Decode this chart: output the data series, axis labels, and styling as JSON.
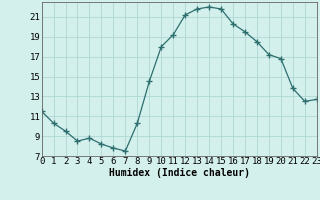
{
  "x": [
    0,
    1,
    2,
    3,
    4,
    5,
    6,
    7,
    8,
    9,
    10,
    11,
    12,
    13,
    14,
    15,
    16,
    17,
    18,
    19,
    20,
    21,
    22,
    23
  ],
  "y": [
    11.5,
    10.3,
    9.5,
    8.5,
    8.8,
    8.2,
    7.8,
    7.5,
    10.3,
    14.5,
    18.0,
    19.2,
    21.2,
    21.8,
    22.0,
    21.8,
    20.3,
    19.5,
    18.5,
    17.2,
    16.8,
    13.8,
    12.5,
    12.7
  ],
  "xlabel": "Humidex (Indice chaleur)",
  "line_color": "#2d6e6e",
  "marker": "+",
  "marker_size": 4,
  "background_color": "#d4f0ec",
  "grid_color": "#aed8d4",
  "ylim": [
    7,
    22.5
  ],
  "xlim": [
    0,
    23
  ],
  "yticks": [
    7,
    9,
    11,
    13,
    15,
    17,
    19,
    21
  ],
  "xtick_labels": [
    "0",
    "1",
    "2",
    "3",
    "4",
    "5",
    "6",
    "7",
    "8",
    "9",
    "10",
    "11",
    "12",
    "13",
    "14",
    "15",
    "16",
    "17",
    "18",
    "19",
    "20",
    "21",
    "22",
    "23"
  ],
  "xlabel_fontsize": 7,
  "tick_fontsize": 6.5
}
